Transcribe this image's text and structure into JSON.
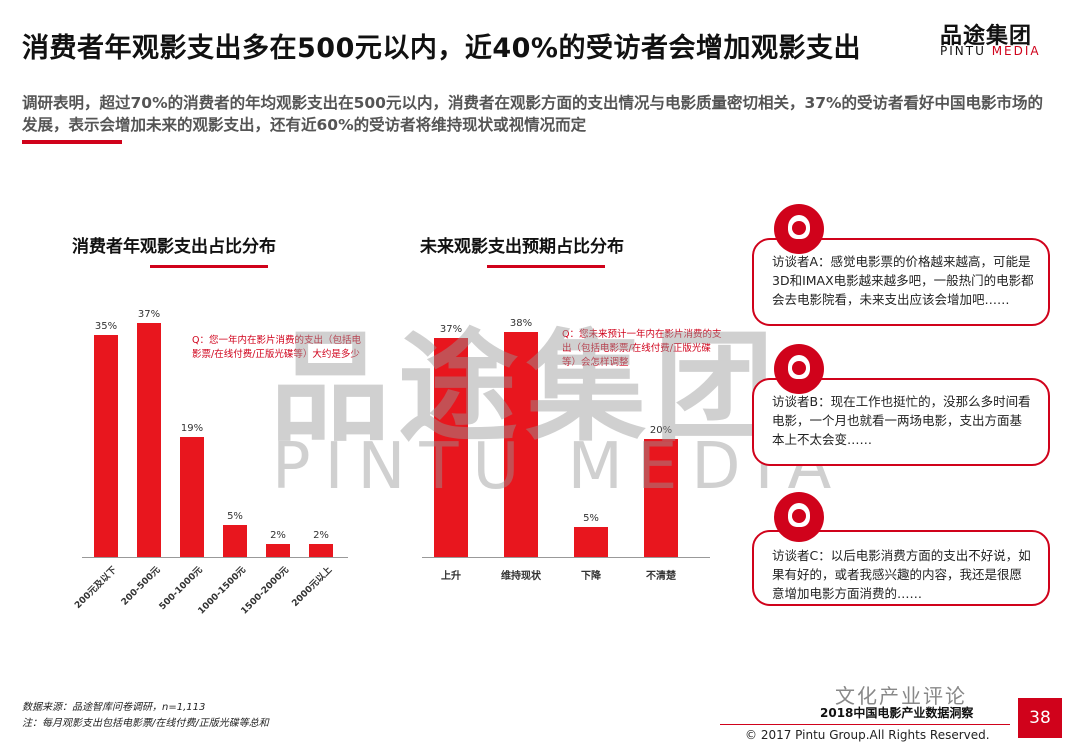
{
  "header": {
    "title": "消费者年观影支出多在500元以内，近40%的受访者会增加观影支出",
    "logo_cn": "品途集团",
    "logo_en_a": "PINTU ",
    "logo_en_b": "MEDIA",
    "subtitle": "调研表明，超过70%的消费者的年均观影支出在500元以内，消费者在观影方面的支出情况与电影质量密切相关，37%的受访者看好中国电影市场的发展，表示会增加未来的观影支出，还有近60%的受访者将维持现状或视情况而定"
  },
  "watermark": {
    "cn": "品途集团",
    "en": "PINTU MEDIA"
  },
  "chart_data": [
    {
      "type": "bar",
      "title": "消费者年观影支出占比分布",
      "categories": [
        "200元及以下",
        "200-500元",
        "500-1000元",
        "1000-1500元",
        "1500-2000元",
        "2000元以上"
      ],
      "values": [
        35,
        37,
        19,
        5,
        2,
        2
      ],
      "value_labels": [
        "35%",
        "37%",
        "19%",
        "5%",
        "2%",
        "2%"
      ],
      "question": "Q：您一年内在影片消费的支出（包括电影票/在线付费/正版光碟等）大约是多少",
      "ylim": [
        0,
        40
      ],
      "color": "#e8161e"
    },
    {
      "type": "bar",
      "title": "未来观影支出预期占比分布",
      "categories": [
        "上升",
        "维持现状",
        "下降",
        "不清楚"
      ],
      "values": [
        37,
        38,
        5,
        20
      ],
      "value_labels": [
        "37%",
        "38%",
        "5%",
        "20%"
      ],
      "question": "Q：您未来预计一年内在影片消费的支出（包括电影票/在线付费/正版光碟等）会怎样调整",
      "ylim": [
        0,
        40
      ],
      "color": "#e8161e"
    }
  ],
  "interviews": [
    {
      "icon": "woman-avatar-icon",
      "text": "访谈者A：感觉电影票的价格越来越高，可能是3D和IMAX电影越来越多吧，一般热门的电影都会去电影院看，未来支出应该会增加吧……"
    },
    {
      "icon": "girl-avatar-icon",
      "text": "访谈者B：现在工作也挺忙的，没那么多时间看电影，一个月也就看一两场电影，支出方面基本上不太会变……"
    },
    {
      "icon": "man-avatar-icon",
      "text": "访谈者C：以后电影消费方面的支出不好说，如果有好的，或者我感兴趣的内容，我还是很愿意增加电影方面消费的……"
    }
  ],
  "footer": {
    "source": "数据来源：品途智库问卷调研，n=1,113",
    "note": "注：每月观影支出包括电影票/在线付费/正版光碟等总和",
    "report_title": "2018中国电影产业数据洞察",
    "brand_watermark": "文化产业评论",
    "copyright": "© 2017 Pintu Group.All Rights Reserved.",
    "page_number": "38"
  }
}
